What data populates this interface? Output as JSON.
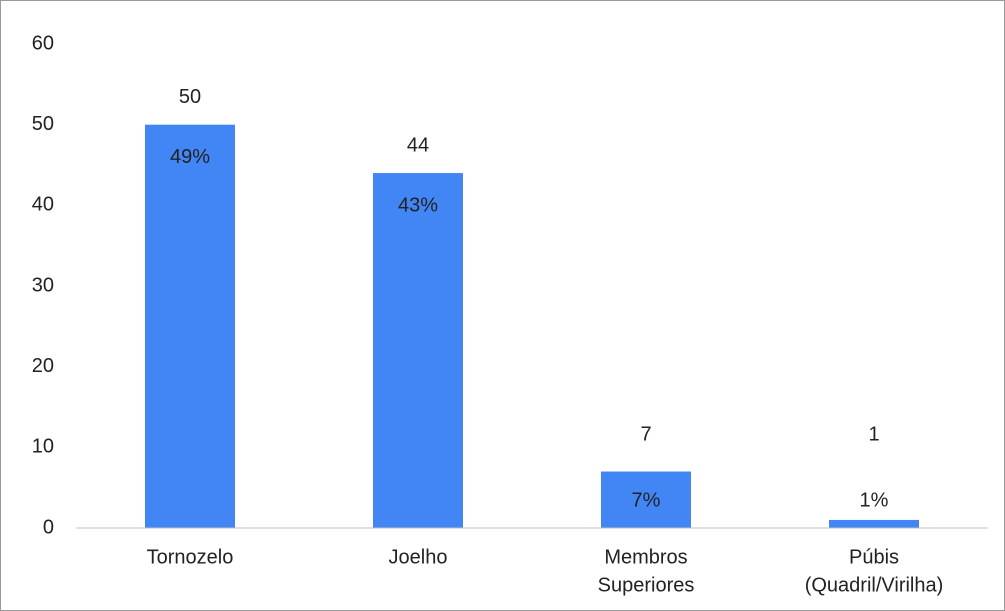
{
  "chart_data": {
    "type": "bar",
    "categories": [
      [
        "Tornozelo"
      ],
      [
        "Joelho"
      ],
      [
        "Membros",
        "Superiores"
      ],
      [
        "Púbis",
        "(Quadril/Virilha)"
      ]
    ],
    "values": [
      50,
      44,
      7,
      1
    ],
    "share_labels": [
      "49%",
      "43%",
      "7%",
      "1%"
    ],
    "color": "#4285f4",
    "ylim": [
      0,
      60
    ],
    "yticks": [
      0,
      10,
      20,
      30,
      40,
      50,
      60
    ],
    "grid": false
  }
}
